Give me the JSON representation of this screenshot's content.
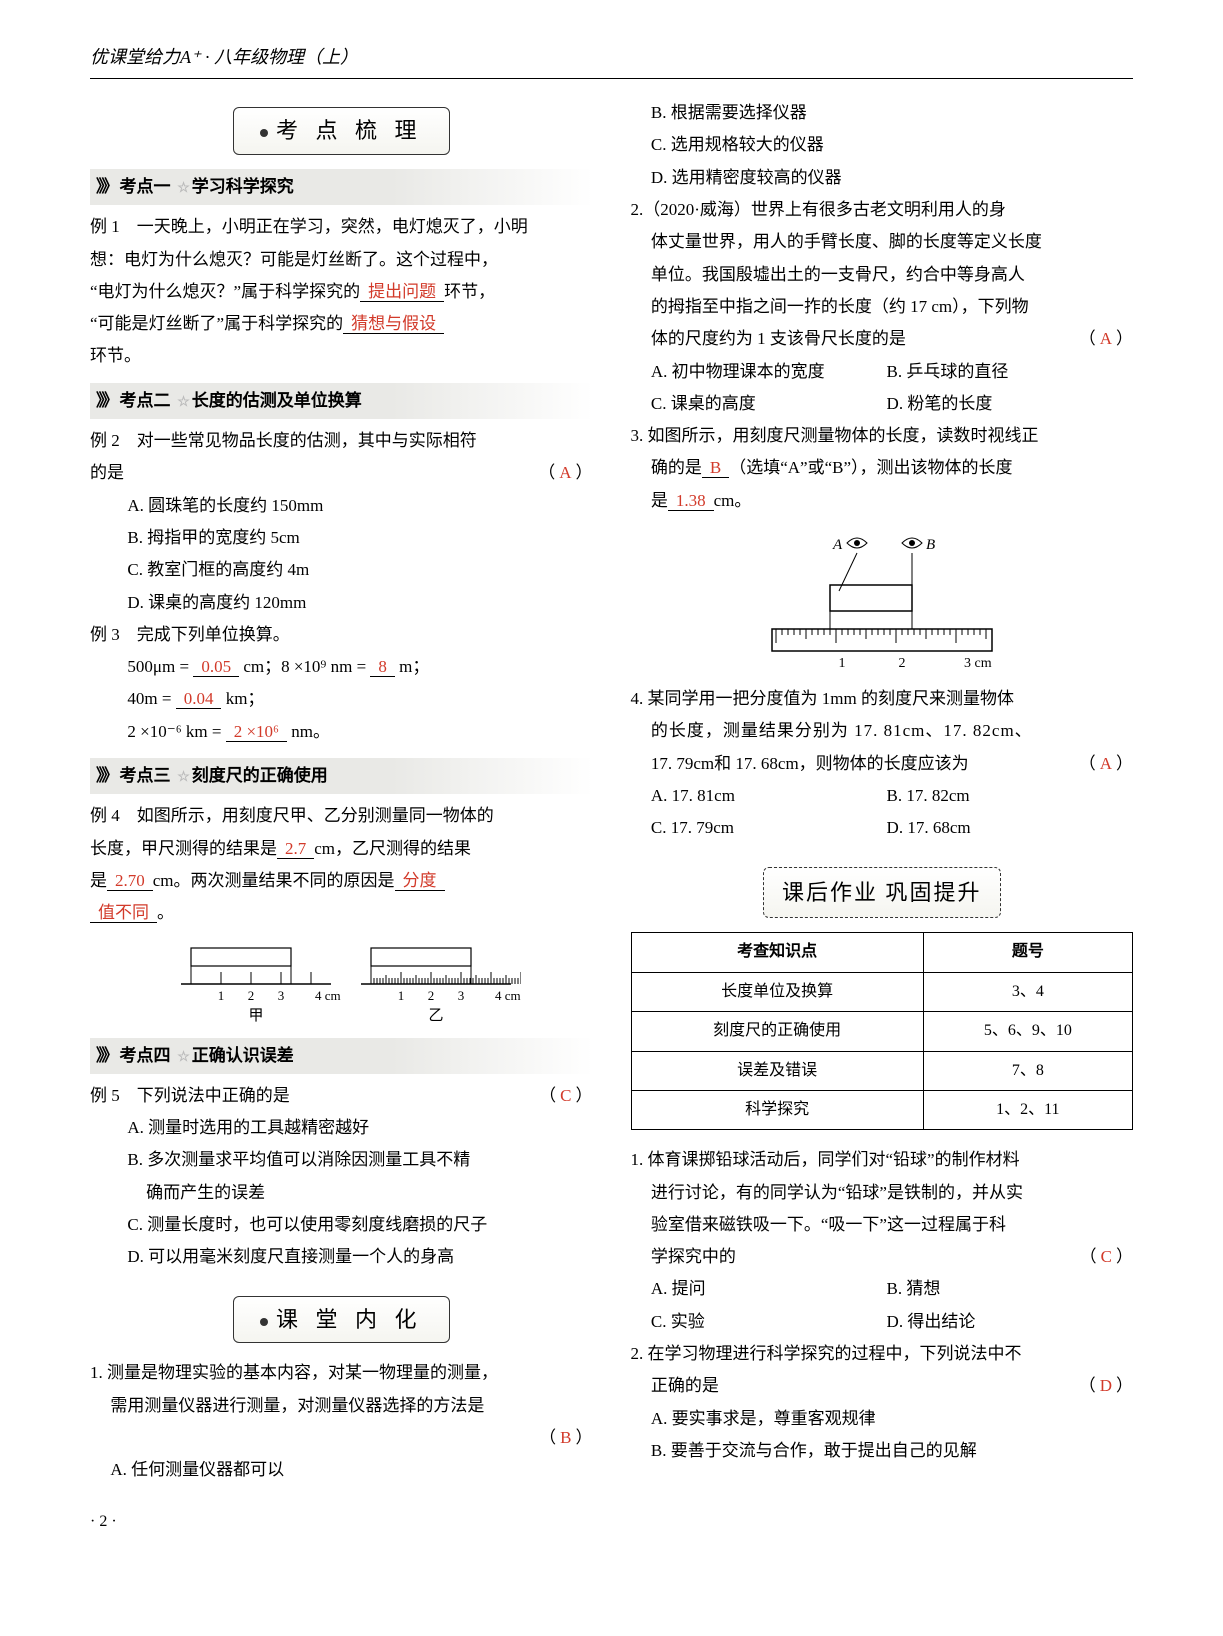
{
  "header": "优课堂给力A⁺ · 八年级物理（上）",
  "pageNumber": "· 2 ·",
  "banners": {
    "b1": "考 点 梳 理",
    "b2": "课 堂 内 化",
    "b3": "课后作业 巩固提升"
  },
  "kp": {
    "k1": {
      "num": "考点一",
      "title": "学习科学探究"
    },
    "k2": {
      "num": "考点二",
      "title": "长度的估测及单位换算"
    },
    "k3": {
      "num": "考点三",
      "title": "刻度尺的正确使用"
    },
    "k4": {
      "num": "考点四",
      "title": "正确认识误差"
    }
  },
  "ex1": {
    "label": "例 1",
    "t1": "一天晚上，小明正在学习，突然，电灯熄灭了，小明",
    "t2": "想：电灯为什么熄灭？可能是灯丝断了。这个过程中，",
    "t3a": "“电灯为什么熄灭？”属于科学探究的",
    "t3b": "环节，",
    "t4a": "“可能是灯丝断了”属于科学探究的",
    "t5": "环节。",
    "a1": "提出问题",
    "a2": "猜想与假设"
  },
  "ex2": {
    "label": "例 2",
    "t1": "对一些常见物品长度的估测，其中与实际相符",
    "t2": "的是",
    "ans": "A",
    "optA": "A. 圆珠笔的长度约 150mm",
    "optB": "B. 拇指甲的宽度约 5cm",
    "optC": "C. 教室门框的高度约 4m",
    "optD": "D. 课桌的高度约 120mm"
  },
  "ex3": {
    "label": "例 3",
    "t1": "完成下列单位换算。",
    "l1a": "500μm =",
    "a1": "0.05",
    "l1b": "cm；8 ×10⁹ nm =",
    "a2": "8",
    "l1c": "m；",
    "l2a": "40m =",
    "a3": "0.04",
    "l2b": "km；",
    "l3a": "2 ×10⁻⁶ km =",
    "a4": "2 ×10⁶",
    "l3b": "nm。"
  },
  "ex4": {
    "label": "例 4",
    "t1": "如图所示，用刻度尺甲、乙分别测量同一物体的",
    "t2a": "长度，甲尺测得的结果是",
    "a1": "2.7",
    "t2b": "cm，乙尺测得的结果",
    "t3a": "是",
    "a2": "2.70",
    "t3b": "cm。两次测量结果不同的原因是",
    "a3": "分度",
    "a3b": "值不同",
    "t4": "。",
    "cap1": "甲",
    "cap2": "乙",
    "ticks": [
      "1",
      "2",
      "3",
      "4 cm"
    ]
  },
  "ex5": {
    "label": "例 5",
    "t1": "下列说法中正确的是",
    "ans": "C",
    "optA": "A. 测量时选用的工具越精密越好",
    "optB1": "B. 多次测量求平均值可以消除因测量工具不精",
    "optB2": "确而产生的误差",
    "optC": "C. 测量长度时，也可以使用零刻度线磨损的尺子",
    "optD": "D. 可以用毫米刻度尺直接测量一个人的身高"
  },
  "cq1": {
    "t1": "1. 测量是物理实验的基本内容，对某一物理量的测量，",
    "t2": "需用测量仪器进行测量，对测量仪器选择的方法是",
    "ans": "B",
    "optA": "A. 任何测量仪器都可以",
    "optB": "B. 根据需要选择仪器",
    "optC": "C. 选用规格较大的仪器",
    "optD": "D. 选用精密度较高的仪器"
  },
  "cq2": {
    "t1": "2.（2020·威海）世界上有很多古老文明利用人的身",
    "t2": "体丈量世界，用人的手臂长度、脚的长度等定义长度",
    "t3": "单位。我国殷墟出土的一支骨尺，约合中等身高人",
    "t4": "的拇指至中指之间一拃的长度（约 17 cm），下列物",
    "t5": "体的尺度约为 1 支该骨尺长度的是",
    "ans": "A",
    "optA": "A. 初中物理课本的宽度",
    "optB": "B. 乒乓球的直径",
    "optC": "C. 课桌的高度",
    "optD": "D. 粉笔的长度"
  },
  "cq3": {
    "t1": "3. 如图所示，用刻度尺测量物体的长度，读数时视线正",
    "t2a": "确的是",
    "a1": "B",
    "t2b": "（选填“A”或“B”），测出该物体的长度",
    "t3a": "是",
    "a2": "1.38",
    "t3b": "cm。",
    "labA": "A",
    "labB": "B",
    "ticks": [
      "1",
      "2",
      "3 cm"
    ]
  },
  "cq4": {
    "t1": "4. 某同学用一把分度值为 1mm 的刻度尺来测量物体",
    "t2": "的长度，测量结果分别为 17. 81cm、17. 82cm、",
    "t3": "17. 79cm和 17. 68cm，则物体的长度应该为",
    "ans": "A",
    "optA": "A. 17. 81cm",
    "optB": "B. 17. 82cm",
    "optC": "C. 17. 79cm",
    "optD": "D. 17. 68cm"
  },
  "hwTable": {
    "h1": "考查知识点",
    "h2": "题号",
    "rows": [
      [
        "长度单位及换算",
        "3、4"
      ],
      [
        "刻度尺的正确使用",
        "5、6、9、10"
      ],
      [
        "误差及错误",
        "7、8"
      ],
      [
        "科学探究",
        "1、2、11"
      ]
    ]
  },
  "hw1": {
    "t1": "1. 体育课掷铅球活动后，同学们对“铅球”的制作材料",
    "t2": "进行讨论，有的同学认为“铅球”是铁制的，并从实",
    "t3": "验室借来磁铁吸一下。“吸一下”这一过程属于科",
    "t4": "学探究中的",
    "ans": "C",
    "optA": "A. 提问",
    "optB": "B. 猜想",
    "optC": "C. 实验",
    "optD": "D. 得出结论"
  },
  "hw2": {
    "t1": "2. 在学习物理进行科学探究的过程中，下列说法中不",
    "t2": "正确的是",
    "ans": "D",
    "optA": "A. 要实事求是，尊重客观规律",
    "optB": "B. 要善于交流与合作，敢于提出自己的见解"
  },
  "colors": {
    "answer": "#d23a2a",
    "heading_bg": "#e9e9e6",
    "text": "#000000"
  }
}
